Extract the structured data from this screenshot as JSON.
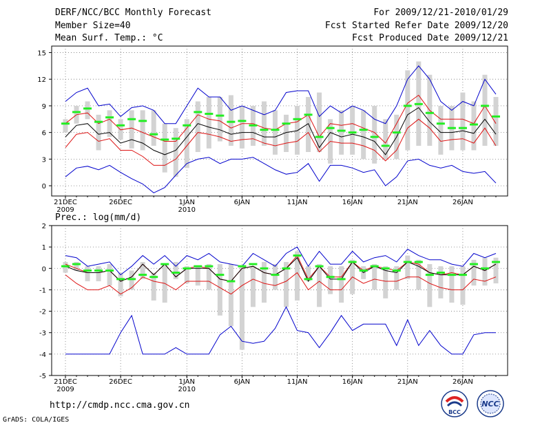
{
  "header": {
    "title": "DERF/NCC/BCC Monthly Forecast",
    "member_size": "Member Size=40",
    "variable": "Mean Surf. Temp.: °C",
    "period": "For 2009/12/21-2010/01/29",
    "start": "Fcst Started Refer Date 2009/12/20",
    "produced": "Fcst Produced Date 2009/12/21"
  },
  "url": "http://cmdp.ncc.cma.gov.cn",
  "credit": "GrADS: COLA/IGES",
  "logos": {
    "bcc": "BCC",
    "ncc": "NCC"
  },
  "colors": {
    "boxes": "#d3d3d3",
    "green": "#22ee22",
    "red": "#dd1111",
    "blue": "#0000cc",
    "black": "#000000"
  },
  "chart_data": [
    {
      "type": "line",
      "title": "Mean Surf. Temp.: °C",
      "ylim": [
        -1,
        15.5
      ],
      "yticks": [
        0,
        3,
        6,
        9,
        12,
        15
      ],
      "x_start": 1,
      "x_end": 40,
      "xticks": [
        {
          "x": 1,
          "label": "21DEC",
          "sub": "2009"
        },
        {
          "x": 6,
          "label": "26DEC"
        },
        {
          "x": 12,
          "label": "1JAN",
          "sub": "2010"
        },
        {
          "x": 17,
          "label": "6JAN"
        },
        {
          "x": 22,
          "label": "11JAN"
        },
        {
          "x": 27,
          "label": "16JAN"
        },
        {
          "x": 32,
          "label": "21JAN"
        },
        {
          "x": 37,
          "label": "26JAN"
        }
      ],
      "bar_low": [
        6.0,
        7.0,
        7.5,
        4.0,
        5.5,
        5.2,
        4.2,
        4.0,
        4.5,
        1.5,
        1.0,
        2.0,
        3.8,
        4.2,
        5.0,
        4.5,
        4.2,
        4.5,
        4.5,
        3.5,
        3.8,
        3.5,
        3.8,
        3.8,
        2.5,
        3.5,
        3.5,
        3.0,
        2.5,
        3.0,
        3.0,
        4.0,
        4.5,
        4.5,
        3.5,
        4.0,
        4.0,
        4.0,
        4.5,
        4.5
      ],
      "bar_high": [
        7.5,
        9.0,
        9.5,
        8.0,
        8.5,
        7.5,
        8.5,
        8.5,
        8.5,
        7.0,
        6.5,
        7.5,
        9.5,
        10.0,
        10.0,
        10.2,
        9.0,
        9.0,
        9.5,
        8.5,
        8.0,
        9.0,
        10.0,
        10.5,
        7.5,
        8.5,
        9.0,
        8.5,
        9.0,
        7.5,
        8.0,
        13.0,
        14.0,
        12.5,
        9.0,
        9.0,
        10.5,
        9.5,
        12.5,
        10.0
      ],
      "series": [
        {
          "name": "observed",
          "color": "#22ee22",
          "values": [
            7.0,
            8.3,
            8.7,
            7.2,
            7.7,
            6.8,
            7.5,
            7.3,
            5.8,
            5.2,
            5.3,
            6.8,
            8.3,
            8.1,
            7.9,
            7.2,
            7.3,
            6.8,
            6.3,
            6.3,
            7.0,
            7.5,
            8.0,
            5.5,
            6.5,
            6.2,
            6.0,
            6.3,
            5.5,
            4.5,
            6.0,
            9.0,
            9.2,
            8.2,
            7.0,
            6.5,
            6.5,
            6.9,
            9.0,
            7.8
          ]
        },
        {
          "name": "ensemble-max",
          "color": "#0000cc",
          "values": [
            9.5,
            10.5,
            11.0,
            9.0,
            9.2,
            7.8,
            8.8,
            9.0,
            8.5,
            7.0,
            7.0,
            9.0,
            11.0,
            10.0,
            10.0,
            8.5,
            9.0,
            8.5,
            8.0,
            8.5,
            10.5,
            10.7,
            10.7,
            7.8,
            9.0,
            8.2,
            9.0,
            8.5,
            7.5,
            7.0,
            9.0,
            12.0,
            13.5,
            12.0,
            9.5,
            8.5,
            9.5,
            9.0,
            12.0,
            10.3
          ]
        },
        {
          "name": "upper-bound",
          "color": "#dd1111",
          "values": [
            7.0,
            8.0,
            8.2,
            7.0,
            7.5,
            6.3,
            6.5,
            6.0,
            5.5,
            5.0,
            5.0,
            6.5,
            8.0,
            7.5,
            7.3,
            6.5,
            7.0,
            7.0,
            6.5,
            6.3,
            7.0,
            7.2,
            8.0,
            5.5,
            7.0,
            6.8,
            7.0,
            6.5,
            6.0,
            4.8,
            7.0,
            9.3,
            10.2,
            8.5,
            7.5,
            7.5,
            7.5,
            7.0,
            9.0,
            7.0
          ]
        },
        {
          "name": "ensemble-mean",
          "color": "#000000",
          "values": [
            5.5,
            6.8,
            7.0,
            5.8,
            6.0,
            4.8,
            5.2,
            4.8,
            4.0,
            3.5,
            4.0,
            5.5,
            7.0,
            6.6,
            6.3,
            5.8,
            6.0,
            6.0,
            5.5,
            5.5,
            6.0,
            6.2,
            7.0,
            4.3,
            6.0,
            5.5,
            5.8,
            5.5,
            5.0,
            3.5,
            5.5,
            8.0,
            8.8,
            7.2,
            6.0,
            6.0,
            6.2,
            5.9,
            7.5,
            5.8
          ]
        },
        {
          "name": "lower-bound",
          "color": "#dd1111",
          "values": [
            4.3,
            5.8,
            6.0,
            5.0,
            5.3,
            4.0,
            4.0,
            3.3,
            2.3,
            2.3,
            3.0,
            4.5,
            6.0,
            5.8,
            5.5,
            5.0,
            5.2,
            5.3,
            4.8,
            4.5,
            4.8,
            5.0,
            6.0,
            3.8,
            5.0,
            4.8,
            4.8,
            4.5,
            4.0,
            2.8,
            4.0,
            6.5,
            7.5,
            6.5,
            5.0,
            5.2,
            5.3,
            4.8,
            6.5,
            4.5
          ]
        },
        {
          "name": "ensemble-min",
          "color": "#0000cc",
          "values": [
            1.0,
            2.0,
            2.2,
            1.8,
            2.3,
            1.5,
            0.8,
            0.2,
            -0.8,
            -0.2,
            1.2,
            2.5,
            3.0,
            3.2,
            2.5,
            3.0,
            3.0,
            3.2,
            2.5,
            1.8,
            1.3,
            1.5,
            2.5,
            0.5,
            2.3,
            2.3,
            2.0,
            1.5,
            1.8,
            0.0,
            1.0,
            2.8,
            3.0,
            2.3,
            2.0,
            2.3,
            1.6,
            1.4,
            1.6,
            0.3
          ]
        }
      ]
    },
    {
      "type": "line",
      "title": "Prec.: log(mm/d)",
      "ylim": [
        -5,
        2
      ],
      "yticks": [
        -5,
        -4,
        -3,
        -2,
        -1,
        0,
        1,
        2
      ],
      "x_start": 1,
      "x_end": 40,
      "xticks": [
        {
          "x": 1,
          "label": "21DEC",
          "sub": "2009"
        },
        {
          "x": 6,
          "label": "26DEC"
        },
        {
          "x": 12,
          "label": "1JAN",
          "sub": "2010"
        },
        {
          "x": 17,
          "label": "6JAN"
        },
        {
          "x": 22,
          "label": "11JAN"
        },
        {
          "x": 27,
          "label": "16JAN"
        },
        {
          "x": 32,
          "label": "21JAN"
        },
        {
          "x": 37,
          "label": "26JAN"
        }
      ],
      "bar_low": [
        -0.2,
        -0.1,
        -0.6,
        -0.6,
        -0.8,
        -1.3,
        -1.0,
        -0.5,
        -1.5,
        -1.6,
        -0.5,
        -0.7,
        -0.8,
        -1.0,
        -2.2,
        -2.7,
        -3.8,
        -1.8,
        -1.6,
        -1.0,
        -1.8,
        -1.5,
        -0.6,
        -1.8,
        -1.2,
        -1.6,
        -1.2,
        -0.5,
        -1.0,
        -1.4,
        -1.0,
        -0.5,
        -1.0,
        -1.8,
        -1.4,
        -1.6,
        -1.7,
        -0.8,
        -0.8,
        -0.7
      ],
      "bar_high": [
        0.3,
        0.3,
        0.1,
        0.1,
        0.2,
        -0.2,
        -0.1,
        0.3,
        -0.2,
        0.2,
        0.3,
        0.1,
        0.1,
        0.2,
        0.2,
        0.2,
        0.1,
        0.1,
        0.3,
        0.2,
        0.3,
        0.8,
        0.1,
        0.2,
        0.1,
        0.1,
        0.4,
        0.1,
        0.2,
        0.1,
        0.1,
        0.6,
        0.4,
        0.2,
        0.1,
        0.1,
        0.1,
        0.4,
        0.5,
        0.5
      ],
      "series": [
        {
          "name": "observed",
          "color": "#22ee22",
          "values": [
            0.1,
            0.2,
            -0.1,
            -0.1,
            -0.1,
            -0.5,
            -0.5,
            -0.3,
            -0.4,
            0.2,
            -0.2,
            0.0,
            0.1,
            0.1,
            -0.3,
            -0.6,
            0.1,
            0.2,
            0.0,
            -0.3,
            0.0,
            0.6,
            -0.5,
            0.1,
            -0.4,
            -0.5,
            0.3,
            -0.1,
            0.1,
            0.0,
            -0.1,
            0.3,
            0.3,
            -0.3,
            -0.2,
            -0.3,
            -0.3,
            0.2,
            0.0,
            0.3
          ]
        },
        {
          "name": "ensemble-max",
          "color": "#0000cc",
          "values": [
            0.6,
            0.5,
            0.1,
            0.2,
            0.3,
            -0.3,
            0.1,
            0.6,
            0.2,
            0.6,
            0.1,
            0.6,
            0.4,
            0.7,
            0.3,
            0.2,
            0.1,
            0.7,
            0.4,
            0.1,
            0.7,
            1.0,
            0.1,
            0.8,
            0.2,
            0.2,
            0.8,
            0.3,
            0.5,
            0.6,
            0.3,
            0.9,
            0.6,
            0.4,
            0.4,
            0.2,
            0.1,
            0.7,
            0.5,
            0.7
          ]
        },
        {
          "name": "upper-bound",
          "color": "#dd1111",
          "values": [
            0.2,
            0.0,
            -0.2,
            -0.2,
            -0.1,
            -0.6,
            -0.4,
            0.2,
            -0.3,
            0.2,
            -0.4,
            0.0,
            0.1,
            0.0,
            -0.5,
            -0.6,
            0.0,
            0.1,
            -0.2,
            -0.3,
            0.0,
            0.6,
            -0.5,
            0.1,
            -0.4,
            -0.4,
            0.3,
            -0.1,
            0.1,
            0.0,
            -0.1,
            0.3,
            0.2,
            -0.2,
            -0.3,
            -0.2,
            -0.3,
            0.1,
            -0.1,
            0.2
          ]
        },
        {
          "name": "ensemble-mean",
          "color": "#000000",
          "values": [
            0.1,
            -0.1,
            -0.2,
            -0.2,
            -0.1,
            -0.6,
            -0.4,
            0.2,
            -0.3,
            0.2,
            -0.4,
            0.0,
            0.0,
            0.0,
            -0.5,
            -0.6,
            0.0,
            0.1,
            -0.2,
            -0.3,
            0.0,
            0.5,
            -0.6,
            0.1,
            -0.5,
            -0.5,
            0.3,
            -0.2,
            0.1,
            -0.1,
            -0.2,
            0.3,
            0.1,
            -0.2,
            -0.3,
            -0.3,
            -0.3,
            0.1,
            -0.1,
            0.2
          ]
        },
        {
          "name": "lower-bound",
          "color": "#dd1111",
          "values": [
            -0.3,
            -0.7,
            -1.0,
            -1.0,
            -0.8,
            -1.2,
            -0.9,
            -0.4,
            -0.6,
            -0.7,
            -1.0,
            -0.6,
            -0.6,
            -0.6,
            -0.9,
            -1.2,
            -0.8,
            -0.5,
            -0.7,
            -0.8,
            -0.6,
            -0.2,
            -1.0,
            -0.6,
            -1.0,
            -1.0,
            -0.4,
            -0.7,
            -0.5,
            -0.6,
            -0.6,
            -0.4,
            -0.4,
            -0.7,
            -0.9,
            -1.0,
            -1.0,
            -0.5,
            -0.6,
            -0.4
          ]
        },
        {
          "name": "ensemble-min",
          "color": "#0000cc",
          "values": [
            -4.0,
            -4.0,
            -4.0,
            -4.0,
            -4.0,
            -3.0,
            -2.2,
            -4.0,
            -4.0,
            -4.0,
            -3.7,
            -4.0,
            -4.0,
            -4.0,
            -3.1,
            -2.7,
            -3.4,
            -3.5,
            -3.4,
            -2.8,
            -1.8,
            -2.9,
            -3.0,
            -3.7,
            -3.0,
            -2.2,
            -2.9,
            -2.6,
            -2.6,
            -2.6,
            -3.6,
            -2.4,
            -3.6,
            -2.9,
            -3.6,
            -4.0,
            -4.0,
            -3.1,
            -3.0,
            -3.0
          ]
        }
      ]
    }
  ]
}
